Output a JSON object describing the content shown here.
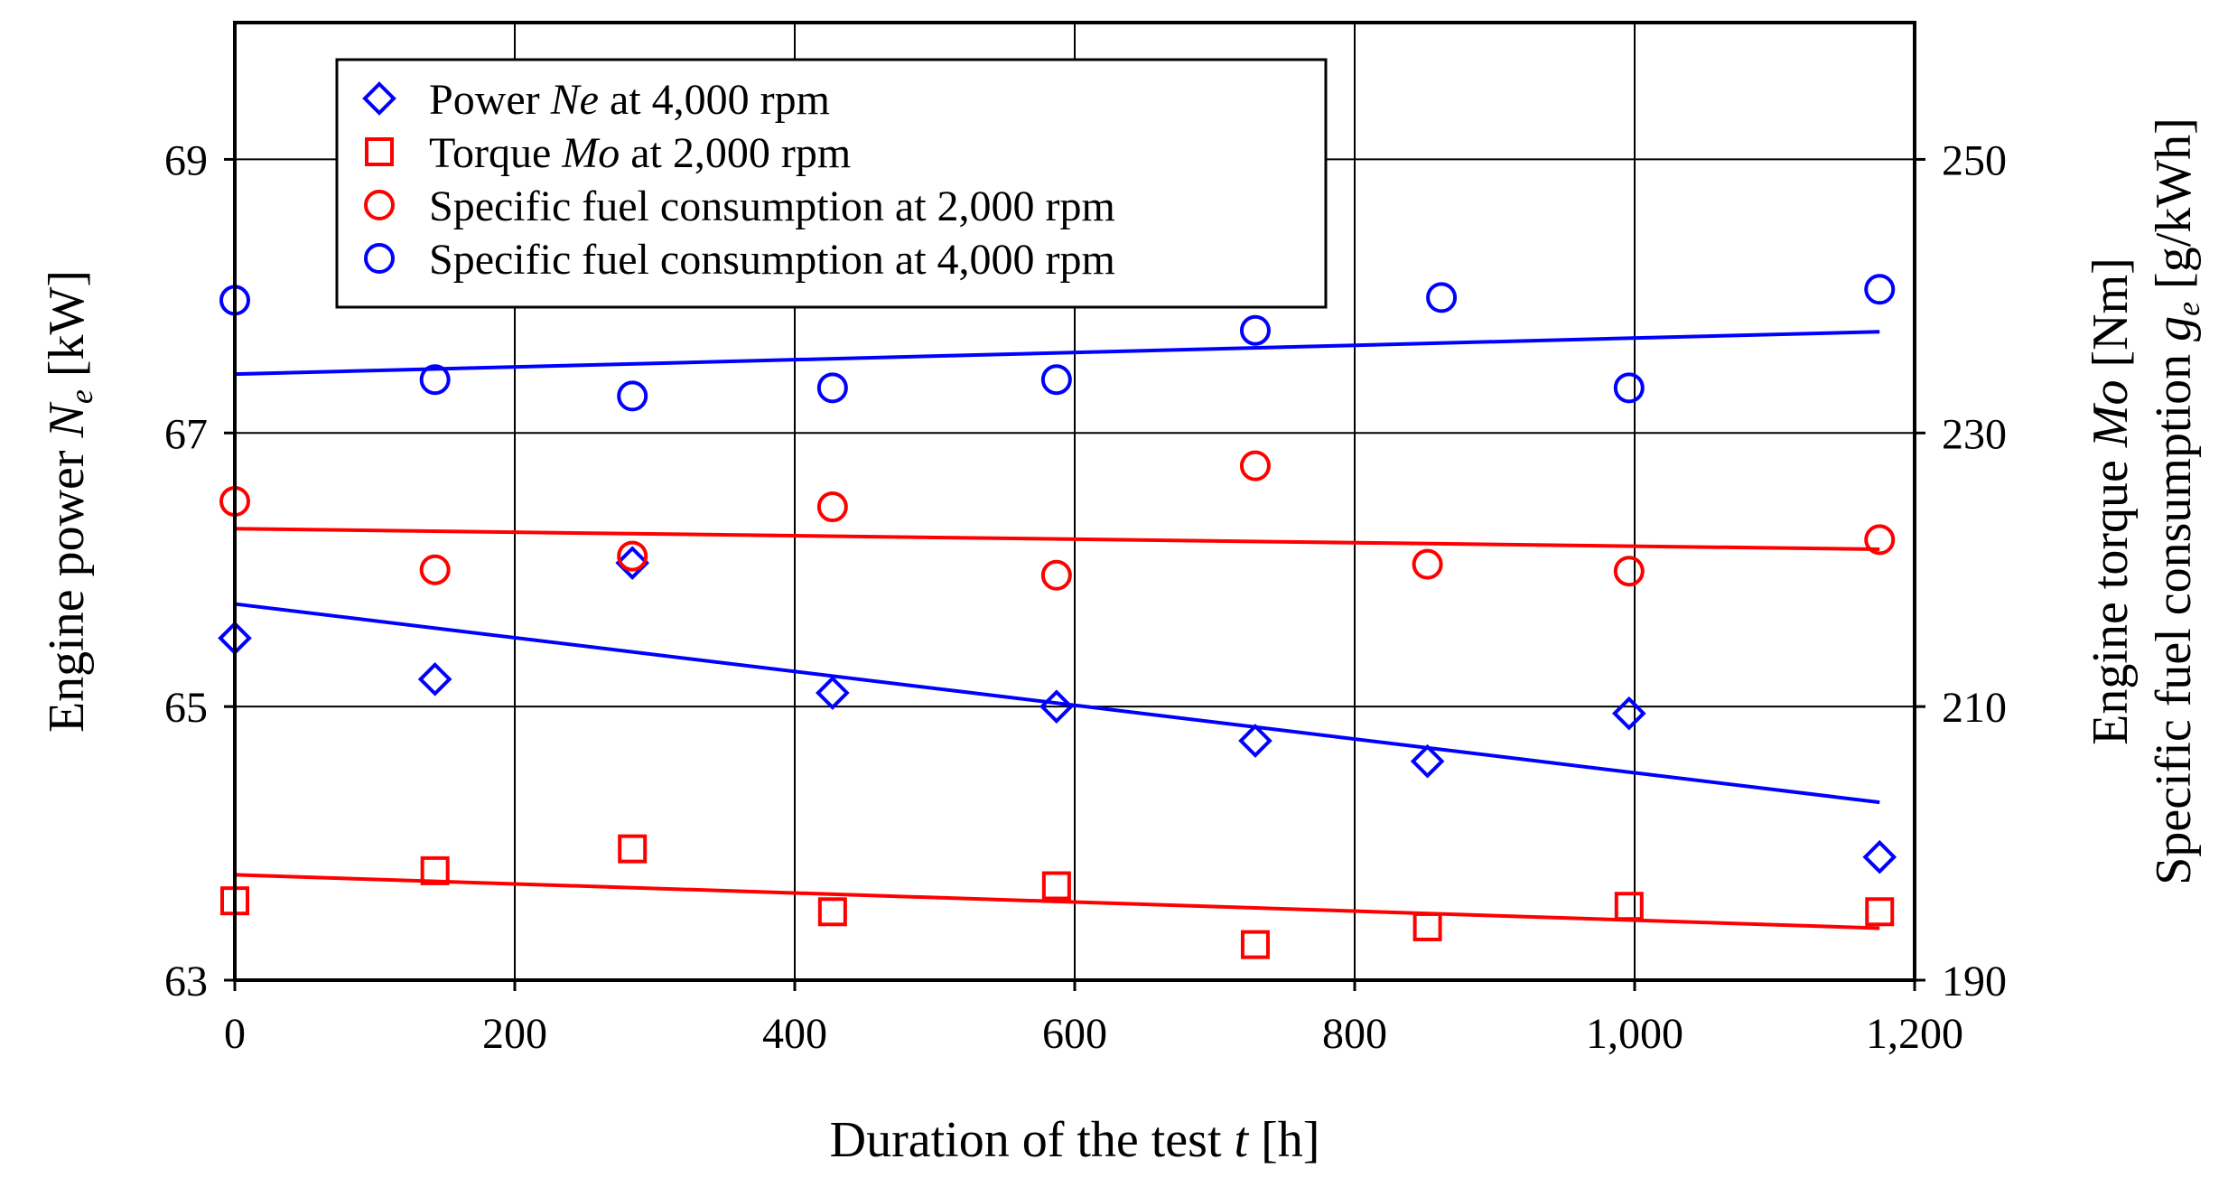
{
  "chart_data": {
    "type": "scatter",
    "x_axis": {
      "label_main": "Duration of the test ",
      "label_var": "t",
      "label_unit": " [h]",
      "ticks": [
        "0",
        "200",
        "400",
        "600",
        "800",
        "1,000",
        "1,200"
      ],
      "range": [
        0,
        1200
      ]
    },
    "y_left": {
      "label_main": "Engine power ",
      "label_var": "N",
      "label_sub": "e",
      "label_unit": " [kW]",
      "ticks": [
        "63",
        "65",
        "67",
        "69"
      ],
      "range": [
        63,
        70
      ]
    },
    "y_right": {
      "line1_main": "Engine torque ",
      "line1_var": "Mo",
      "line1_unit": " [Nm]",
      "line2_main": "Specific fuel consumption ",
      "line2_var": "g",
      "line2_sub": "e",
      "line2_unit": " [g/kWh]",
      "ticks": [
        "190",
        "210",
        "230",
        "250"
      ],
      "range": [
        190,
        260
      ]
    },
    "grid": true,
    "legend_position": "top-left",
    "colors": {
      "blue": "#0000ff",
      "red": "#ff0000"
    },
    "series": [
      {
        "name": "Power Ne at 4,000 rpm",
        "legend_pre": "Power ",
        "legend_var": "Ne",
        "legend_post": " at 4,000 rpm",
        "marker": "diamond",
        "color": "#0000ff",
        "axis": "left",
        "x": [
          0,
          143,
          284,
          427,
          587,
          729,
          852,
          996,
          1175
        ],
        "y": [
          65.5,
          65.2,
          66.05,
          65.1,
          65.0,
          64.75,
          64.6,
          64.95,
          63.9
        ],
        "trend": {
          "x": [
            0,
            1175
          ],
          "y": [
            65.75,
            64.3
          ]
        }
      },
      {
        "name": "Torque Mo at 2,000 rpm",
        "legend_pre": "Torque ",
        "legend_var": "Mo",
        "legend_post": " at 2,000 rpm",
        "marker": "square",
        "color": "#ff0000",
        "axis": "right",
        "x": [
          0,
          143,
          284,
          427,
          587,
          729,
          852,
          996,
          1175
        ],
        "y": [
          195.8,
          198.0,
          199.6,
          195.0,
          196.9,
          192.6,
          193.9,
          195.4,
          195.0
        ],
        "trend": {
          "x": [
            0,
            1175
          ],
          "y": [
            197.7,
            193.8
          ]
        }
      },
      {
        "name": "Specific fuel consumption at 2,000 rpm",
        "legend_pre": "Specific fuel consumption at 2,000 rpm",
        "legend_var": "",
        "legend_post": "",
        "marker": "circle",
        "color": "#ff0000",
        "axis": "right",
        "x": [
          0,
          143,
          284,
          427,
          587,
          729,
          852,
          996,
          1175
        ],
        "y": [
          225.0,
          220.0,
          221.0,
          224.6,
          219.6,
          227.6,
          220.4,
          219.9,
          222.2
        ],
        "trend": {
          "x": [
            0,
            1175
          ],
          "y": [
            223.0,
            221.5
          ]
        }
      },
      {
        "name": "Specific fuel consumption at 4,000 rpm",
        "legend_pre": "Specific fuel consumption at 4,000 rpm",
        "legend_var": "",
        "legend_post": "",
        "marker": "circle",
        "color": "#0000ff",
        "axis": "right",
        "x": [
          0,
          143,
          284,
          427,
          587,
          729,
          862,
          996,
          1175
        ],
        "y": [
          239.7,
          233.9,
          232.7,
          233.3,
          233.9,
          237.5,
          239.9,
          233.3,
          240.5
        ],
        "trend": {
          "x": [
            0,
            1175
          ],
          "y": [
            234.3,
            237.4
          ]
        }
      }
    ]
  }
}
